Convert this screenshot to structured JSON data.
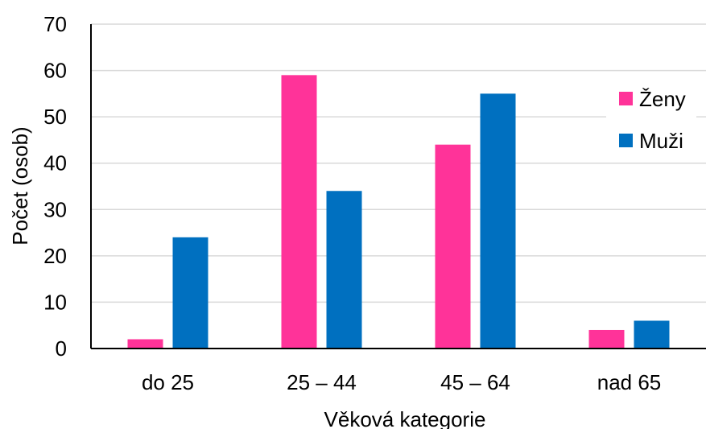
{
  "chart_data": {
    "type": "bar",
    "categories": [
      "do 25",
      "25 – 44",
      "45 – 64",
      "nad 65"
    ],
    "series": [
      {
        "name": "Ženy",
        "color": "#ff3399",
        "values": [
          2,
          59,
          44,
          4
        ]
      },
      {
        "name": "Muži",
        "color": "#0070c0",
        "values": [
          24,
          34,
          55,
          6
        ]
      }
    ],
    "xlabel": "Věková kategorie",
    "ylabel": "Počet (osob)",
    "ylim": [
      0,
      70
    ],
    "yticks": [
      0,
      10,
      20,
      30,
      40,
      50,
      60,
      70
    ],
    "grid": true,
    "legend_position": "right"
  }
}
